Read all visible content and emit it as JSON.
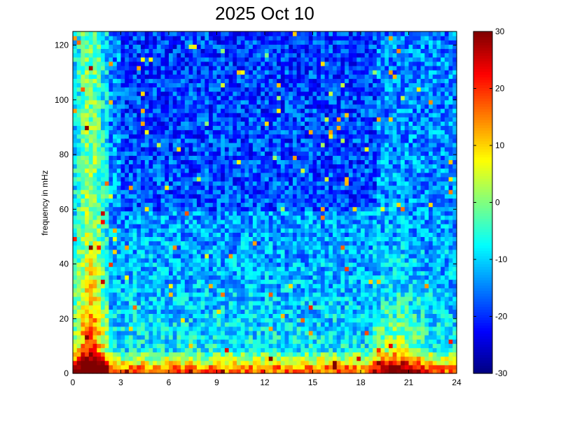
{
  "chart_data": {
    "type": "heatmap",
    "title": "2025 Oct 10",
    "xlabel": "",
    "ylabel": "frequency in mHz",
    "x_ticks": [
      "0",
      "3",
      "6",
      "9",
      "12",
      "15",
      "18",
      "21",
      "24"
    ],
    "y_ticks": [
      "0",
      "20",
      "40",
      "60",
      "80",
      "100",
      "120"
    ],
    "xlim": [
      0,
      24
    ],
    "ylim": [
      0,
      125
    ],
    "colorbar": {
      "range": [
        -30,
        30
      ],
      "ticks": [
        "30",
        "20",
        "10",
        "0",
        "-10",
        "-20",
        "-30"
      ],
      "colormap": "jet"
    },
    "features": [
      {
        "x_range": [
          0.0,
          2.3
        ],
        "y_range": [
          0,
          125
        ],
        "level": "high (up to 30)"
      },
      {
        "x_range": [
          19.0,
          23.0
        ],
        "y_range": [
          0,
          60
        ],
        "level": "high near low frequencies"
      },
      {
        "x_range": [
          0,
          24
        ],
        "y_range": [
          0,
          8
        ],
        "level": "high (15 to 30)"
      },
      {
        "x_range": [
          3,
          19
        ],
        "y_range": [
          60,
          125
        ],
        "level": "low (-25 to -10)"
      }
    ]
  }
}
